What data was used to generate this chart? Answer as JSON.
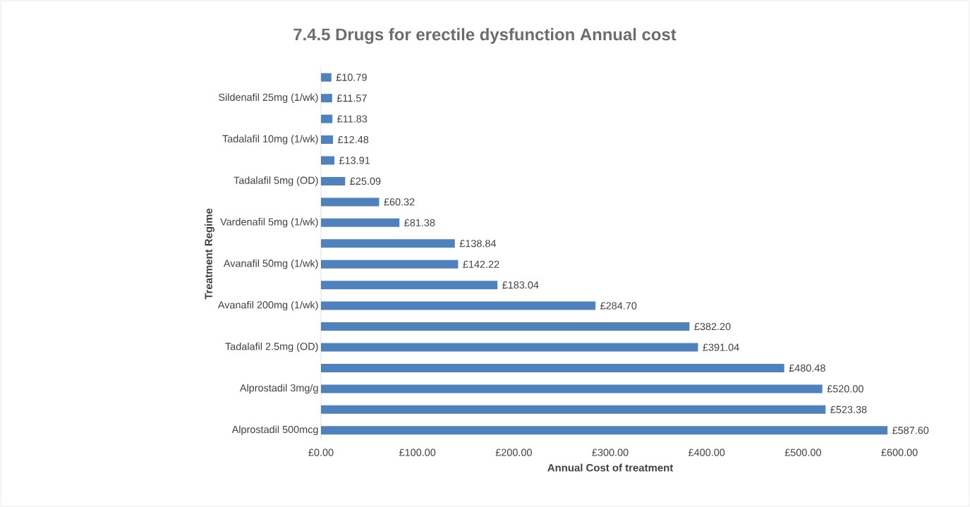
{
  "chart_data": {
    "type": "bar",
    "orientation": "horizontal",
    "title": "7.4.5 Drugs for erectile dysfunction Annual cost",
    "xlabel": "Annual Cost of treatment",
    "ylabel": "Treatment Regime",
    "categories": [
      null,
      "Sildenafil 25mg (1/wk)",
      null,
      "Tadalafil 10mg (1/wk)",
      null,
      "Tadalafil 5mg (OD)",
      null,
      "Vardenafil 5mg (1/wk)",
      null,
      "Avanafil 50mg (1/wk)",
      null,
      "Avanafil 200mg (1/wk)",
      null,
      "Tadalafil 2.5mg (OD)",
      null,
      "Alprostadil 3mg/g",
      null,
      "Alprostadil 500mcg"
    ],
    "values": [
      10.79,
      11.57,
      11.83,
      12.48,
      13.91,
      25.09,
      60.32,
      81.38,
      138.84,
      142.22,
      183.04,
      284.7,
      382.2,
      391.04,
      480.48,
      520.0,
      523.38,
      587.6
    ],
    "value_labels": [
      "£10.79",
      "£11.57",
      "£11.83",
      "£12.48",
      "£13.91",
      "£25.09",
      "£60.32",
      "£81.38",
      "£138.84",
      "£142.22",
      "£183.04",
      "£284.70",
      "£382.20",
      "£391.04",
      "£480.48",
      "£520.00",
      "£523.38",
      "£587.60"
    ],
    "color": "#4f81bd",
    "xlim": [
      0,
      600
    ],
    "xticks": [
      {
        "value": 0,
        "label": "£0.00"
      },
      {
        "value": 100,
        "label": "£100.00"
      },
      {
        "value": 200,
        "label": "£200.00"
      },
      {
        "value": 300,
        "label": "£300.00"
      },
      {
        "value": 400,
        "label": "£400.00"
      },
      {
        "value": 500,
        "label": "£500.00"
      },
      {
        "value": 600,
        "label": "£600.00"
      }
    ]
  }
}
